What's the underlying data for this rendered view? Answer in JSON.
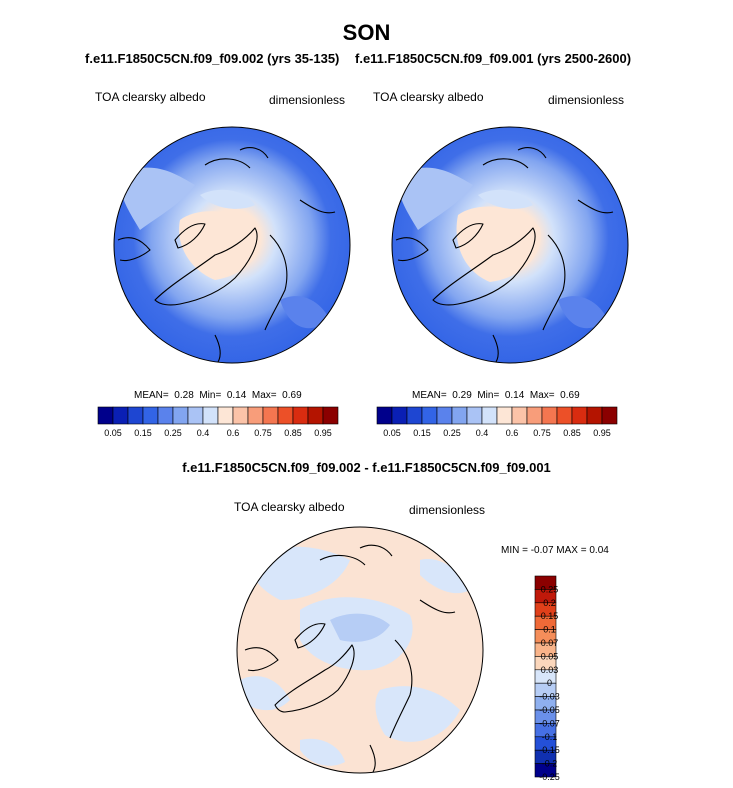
{
  "title": "SON",
  "panels": [
    {
      "case": "f.e11.F1850C5CN.f09_f09.002 (yrs 35-135)",
      "variable": "TOA clearsky albedo",
      "units": "dimensionless",
      "stats": {
        "mean_label": "MEAN=",
        "mean": "0.28",
        "min_label": "Min=",
        "min": "0.14",
        "max_label": "Max=",
        "max": "0.69"
      }
    },
    {
      "case": "f.e11.F1850C5CN.f09_f09.001 (yrs 2500-2600)",
      "variable": "TOA clearsky albedo",
      "units": "dimensionless",
      "stats": {
        "mean_label": "MEAN=",
        "mean": "0.29",
        "min_label": "Min=",
        "min": "0.14",
        "max_label": "Max=",
        "max": "0.69"
      }
    }
  ],
  "diff_panel": {
    "title": "f.e11.F1850C5CN.f09_f09.002 - f.e11.F1850C5CN.f09_f09.001",
    "variable": "TOA clearsky albedo",
    "units": "dimensionless",
    "minmax": "MIN =  -0.07 MAX =  0.04"
  },
  "colorbar_top": {
    "colors": [
      "#00008b",
      "#0a1fb4",
      "#1e46d2",
      "#3264e6",
      "#5a82ec",
      "#82a5f0",
      "#aac3f5",
      "#d2e2fa",
      "#fde6d6",
      "#fbc3a8",
      "#f89d7a",
      "#f47650",
      "#ec5028",
      "#d92c10",
      "#b41400",
      "#8b0000"
    ],
    "labels": [
      "0.05",
      "0.15",
      "0.25",
      "0.4",
      "0.6",
      "0.75",
      "0.85",
      "0.95"
    ]
  },
  "colorbar_diff": {
    "colors": [
      "#8b0000",
      "#c0190a",
      "#e0401a",
      "#f06a38",
      "#f58e5a",
      "#f9b48a",
      "#fbd7bc",
      "#d8e6fa",
      "#b6cdf5",
      "#8fb0ef",
      "#6a90ea",
      "#4670e4",
      "#2450d8",
      "#1030b0",
      "#00008b"
    ],
    "labels": [
      "0.25",
      "0.2",
      "0.15",
      "0.1",
      "0.07",
      "0.05",
      "0.03",
      "0",
      "-0.03",
      "-0.05",
      "-0.07",
      "-0.1",
      "-0.15",
      "-0.2",
      "-0.25"
    ]
  }
}
